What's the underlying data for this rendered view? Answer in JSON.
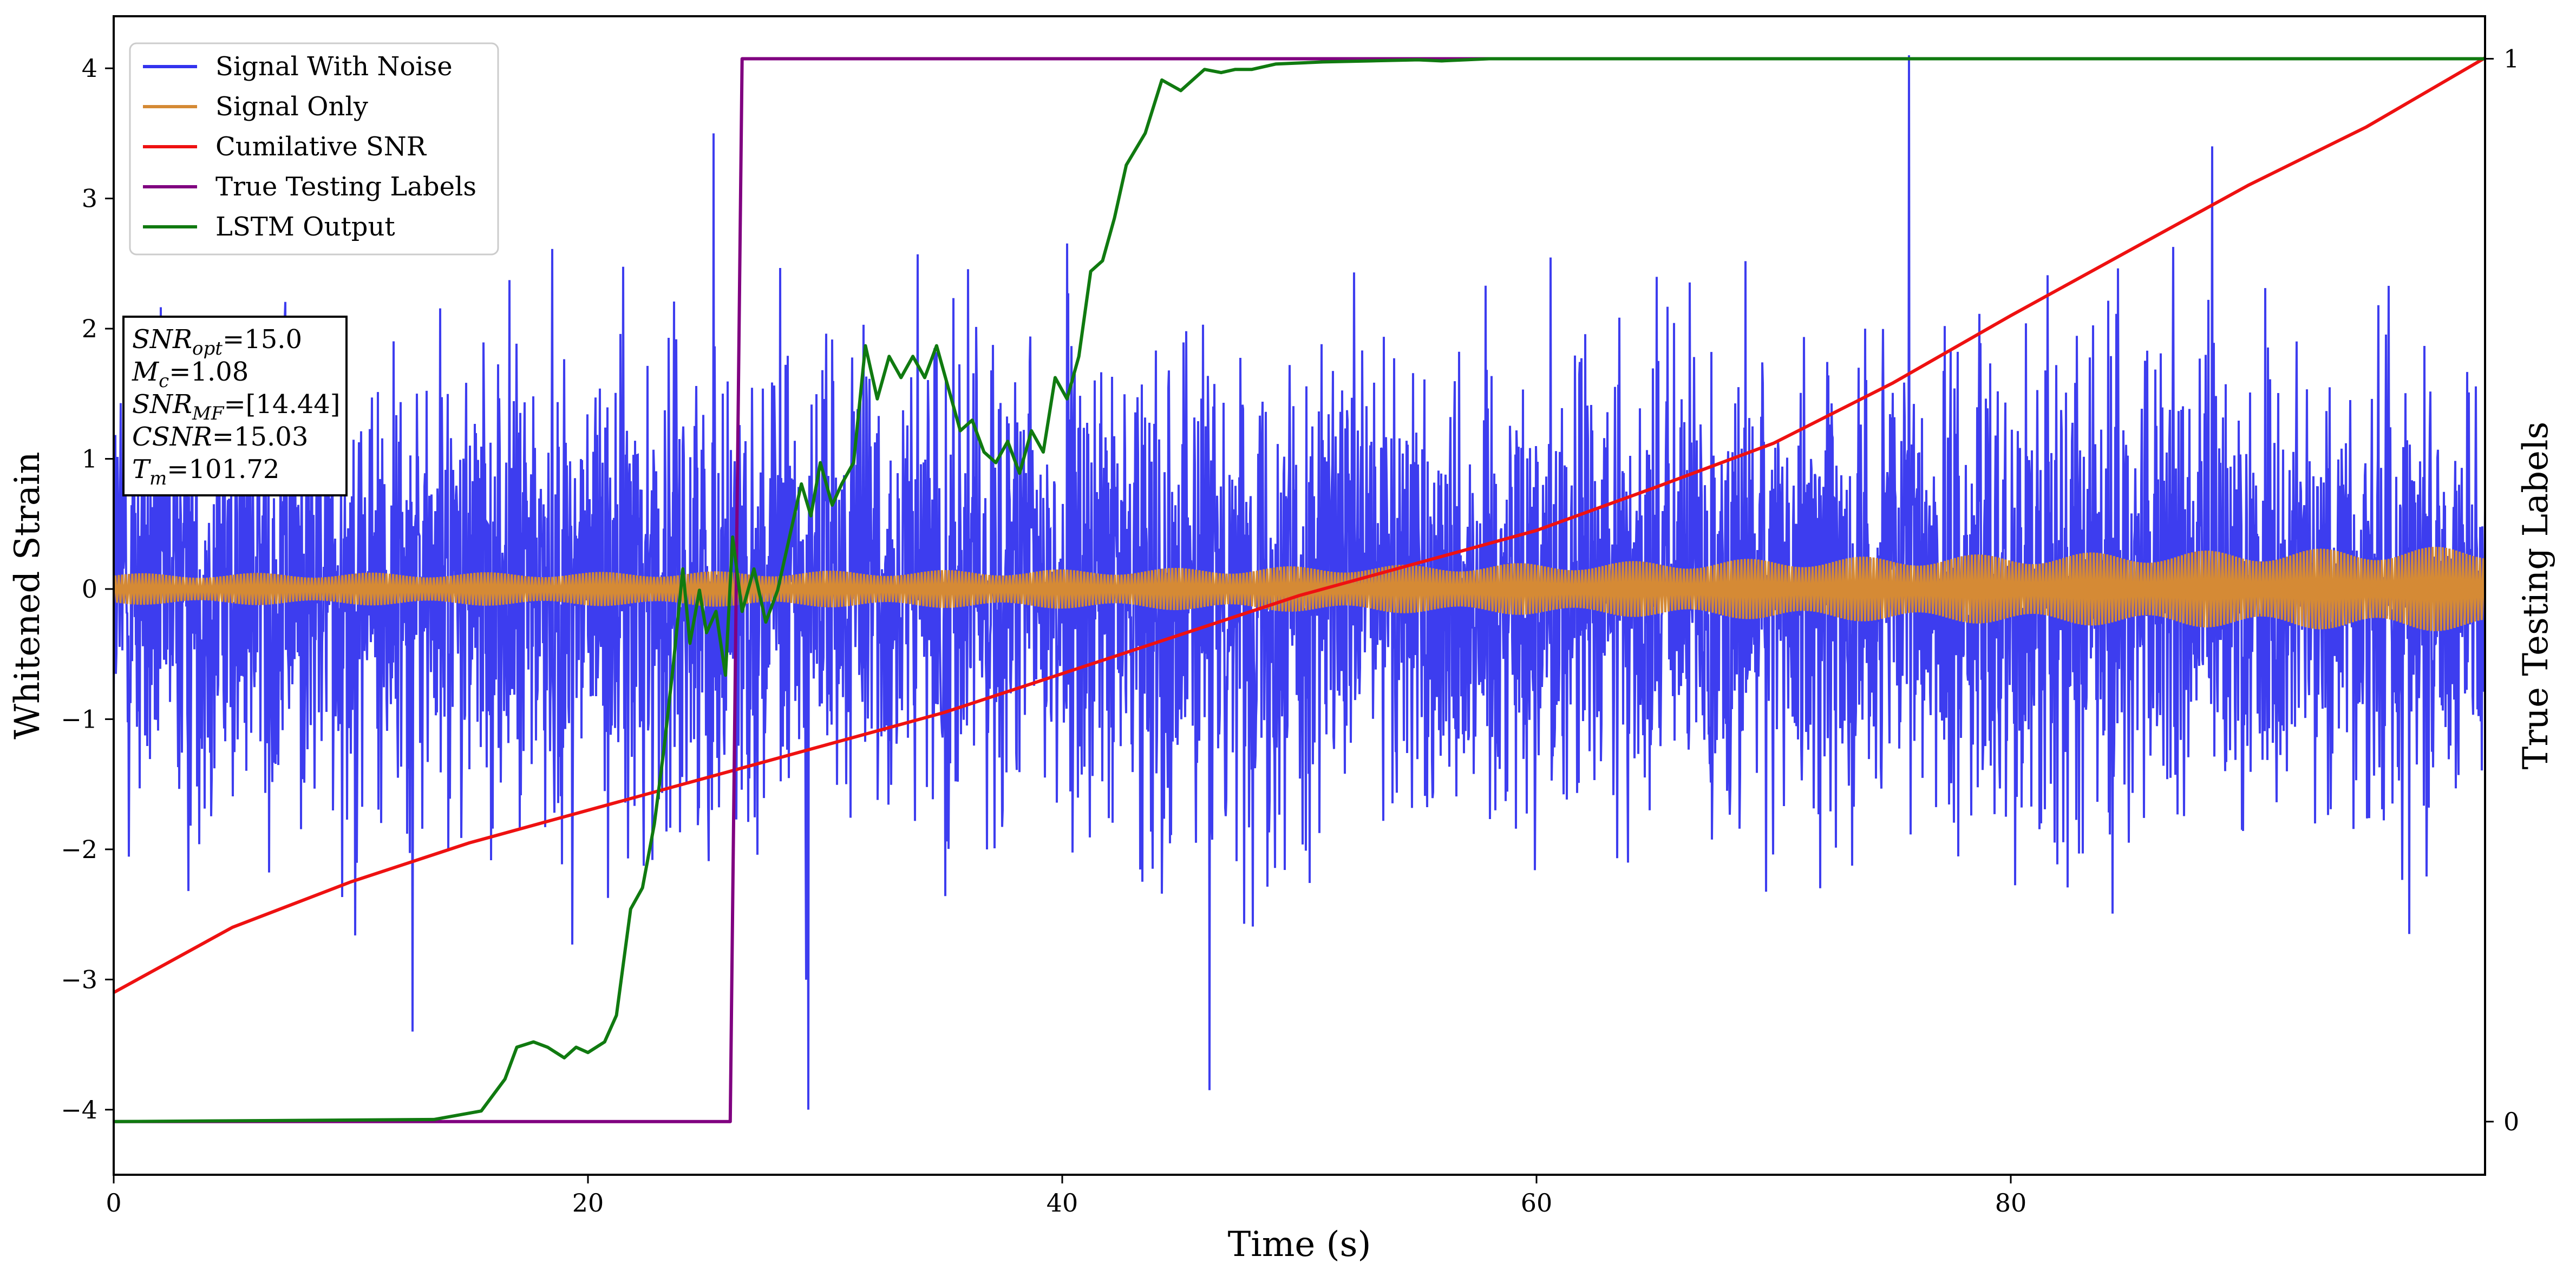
{
  "chart_data": {
    "type": "line",
    "xlabel": "Time (s)",
    "ylabel": "Whitened Strain",
    "y2label": "True Testing Labels",
    "xlim": [
      0,
      100
    ],
    "ylim": [
      -4.5,
      4.4
    ],
    "y2lim": [
      -0.05,
      1.04
    ],
    "x_ticks": [
      0,
      20,
      40,
      60,
      80
    ],
    "y_ticks": [
      -4,
      -3,
      -2,
      -1,
      0,
      1,
      2,
      3,
      4
    ],
    "y2_ticks": [
      0,
      1
    ],
    "grid": false,
    "legend_position": "top-left",
    "series": [
      {
        "name": "Signal With Noise",
        "color": "#3333ee",
        "axis": "left",
        "envelope": {
          "x": [
            0,
            100
          ],
          "typical_amplitude": 2.0
        },
        "notable_points": [
          {
            "x": 75.7,
            "y": 4.1
          },
          {
            "x": 29.3,
            "y": -4.0
          },
          {
            "x": 46.2,
            "y": -3.85
          },
          {
            "x": 12.6,
            "y": -3.4
          },
          {
            "x": 25.3,
            "y": 3.5
          },
          {
            "x": 88.5,
            "y": 3.4
          }
        ]
      },
      {
        "name": "Signal Only",
        "color": "#d58a35",
        "axis": "left",
        "amplitude": {
          "x": [
            0,
            20,
            40,
            60,
            80,
            100
          ],
          "y": [
            0.12,
            0.13,
            0.15,
            0.2,
            0.27,
            0.33
          ]
        }
      },
      {
        "name": "Cumilative SNR",
        "color": "#ee1111",
        "axis": "left",
        "x": [
          0,
          5,
          10,
          15,
          20,
          25,
          30,
          35,
          40,
          45,
          50,
          55,
          60,
          65,
          70,
          75,
          80,
          85,
          90,
          95,
          100
        ],
        "y": [
          -3.1,
          -2.6,
          -2.25,
          -1.95,
          -1.7,
          -1.45,
          -1.2,
          -0.95,
          -0.65,
          -0.35,
          -0.05,
          0.2,
          0.45,
          0.78,
          1.12,
          1.58,
          2.1,
          2.6,
          3.1,
          3.55,
          4.08
        ]
      },
      {
        "name": "True Testing Labels",
        "color": "#800080",
        "axis": "right",
        "x": [
          0,
          26.0,
          26.5,
          100
        ],
        "y": [
          0,
          0,
          1,
          1
        ]
      },
      {
        "name": "LSTM Output",
        "color": "#107a10",
        "axis": "right",
        "x": [
          0,
          13.5,
          15.5,
          16.5,
          17.0,
          17.7,
          18.3,
          19.0,
          19.5,
          20.0,
          20.7,
          21.2,
          21.8,
          22.3,
          22.8,
          23.2,
          23.6,
          24.0,
          24.3,
          24.7,
          25.0,
          25.4,
          25.8,
          26.1,
          26.5,
          27.0,
          27.5,
          28.0,
          28.5,
          29.0,
          29.4,
          29.8,
          30.3,
          30.7,
          31.2,
          31.7,
          32.2,
          32.7,
          33.2,
          33.7,
          34.2,
          34.7,
          35.2,
          35.7,
          36.2,
          36.7,
          37.2,
          37.7,
          38.2,
          38.7,
          39.2,
          39.7,
          40.2,
          40.7,
          41.2,
          41.7,
          42.2,
          42.7,
          43.5,
          44.2,
          45.0,
          46.0,
          46.7,
          47.3,
          48.0,
          49.0,
          50.0,
          51.0,
          53.0,
          55.0,
          56.0,
          57.0,
          58.0,
          60.0,
          62.0,
          66.0,
          100.0
        ],
        "y": [
          0.0,
          0.002,
          0.01,
          0.04,
          0.07,
          0.075,
          0.07,
          0.06,
          0.07,
          0.065,
          0.075,
          0.1,
          0.2,
          0.22,
          0.28,
          0.35,
          0.43,
          0.52,
          0.45,
          0.5,
          0.46,
          0.48,
          0.42,
          0.55,
          0.48,
          0.52,
          0.47,
          0.5,
          0.55,
          0.6,
          0.57,
          0.62,
          0.58,
          0.6,
          0.62,
          0.73,
          0.68,
          0.72,
          0.7,
          0.72,
          0.7,
          0.73,
          0.69,
          0.65,
          0.66,
          0.63,
          0.62,
          0.64,
          0.61,
          0.65,
          0.63,
          0.7,
          0.68,
          0.72,
          0.8,
          0.81,
          0.85,
          0.9,
          0.93,
          0.98,
          0.97,
          0.99,
          0.987,
          0.99,
          0.99,
          0.995,
          0.996,
          0.997,
          0.998,
          0.999,
          0.998,
          0.999,
          1.0,
          1.0,
          1.0,
          1.0,
          1.0
        ]
      }
    ],
    "annotation": {
      "lines": [
        {
          "var": "SNR",
          "sub": "opt",
          "value": "=15.0"
        },
        {
          "var": "M",
          "sub": "c",
          "value": "=1.08"
        },
        {
          "var": "SNR",
          "sub": "MF",
          "value": "=[14.44]"
        },
        {
          "var": "CSNR",
          "sub": "",
          "value": "=15.03"
        },
        {
          "var": "T",
          "sub": "m",
          "value": "=101.72"
        }
      ]
    }
  }
}
